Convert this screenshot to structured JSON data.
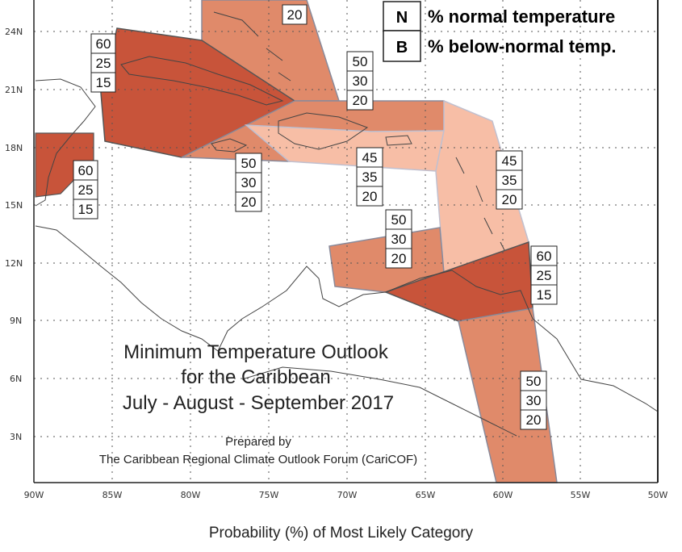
{
  "title": {
    "line1": "Minimum Temperature Outlook",
    "line2": "for the Caribbean",
    "line3": "July - August - September 2017",
    "prepared_by": "Prepared by",
    "organization": "The Caribbean Regional Climate Outlook Forum (CariCOF)"
  },
  "legend": [
    {
      "key": "N",
      "text": "% normal temperature"
    },
    {
      "key": "B",
      "text": "% below-normal temp."
    }
  ],
  "footer": "Probability (%) of Most Likely Category",
  "lat_ticks": [
    "24N",
    "21N",
    "18N",
    "15N",
    "12N",
    "9N",
    "6N",
    "3N"
  ],
  "lon_ticks": [
    "90W",
    "85W",
    "80W",
    "75W",
    "70W",
    "65W",
    "60W",
    "55W",
    "50W"
  ],
  "colors": {
    "dark": "#c8543a",
    "medium": "#e08a6a",
    "light": "#f7bea6",
    "coast": "#444444",
    "grid": "#555555"
  },
  "regions": [
    {
      "id": "bahamas",
      "shade": "medium",
      "probs": [
        "",
        "",
        "20"
      ]
    },
    {
      "id": "cuba-jamaica",
      "shade": "dark",
      "probs": [
        "60",
        "25",
        "15"
      ]
    },
    {
      "id": "belize",
      "shade": "dark",
      "probs": [
        "60",
        "25",
        "15"
      ]
    },
    {
      "id": "turks-caicos",
      "shade": "medium",
      "probs": [
        "50",
        "30",
        "20"
      ]
    },
    {
      "id": "jamaica-sea",
      "shade": "medium",
      "probs": [
        "50",
        "30",
        "20"
      ]
    },
    {
      "id": "hispaniola-pr",
      "shade": "light",
      "probs": [
        "45",
        "35",
        "20"
      ]
    },
    {
      "id": "lesser-antilles",
      "shade": "light",
      "probs": [
        "45",
        "35",
        "20"
      ]
    },
    {
      "id": "abc-islands",
      "shade": "medium",
      "probs": [
        "50",
        "30",
        "20"
      ]
    },
    {
      "id": "trinidad-venezuela",
      "shade": "dark",
      "probs": [
        "60",
        "25",
        "15"
      ]
    },
    {
      "id": "guianas",
      "shade": "medium",
      "probs": [
        "50",
        "30",
        "20"
      ]
    }
  ]
}
